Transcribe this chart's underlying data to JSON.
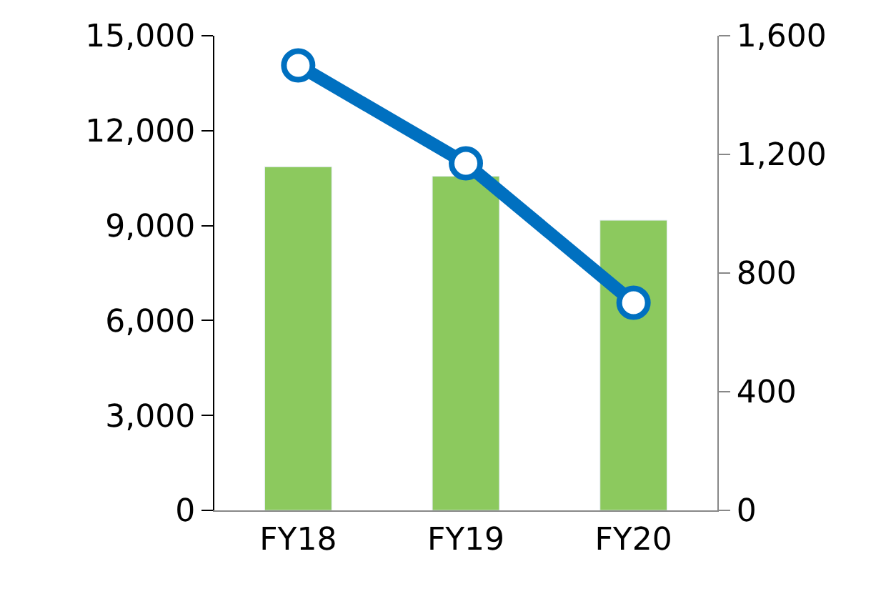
{
  "chart_data": {
    "type": "bar",
    "categories": [
      "FY18",
      "FY19",
      "FY20"
    ],
    "series": [
      {
        "color": "#8cc95e",
        "values": [
          10860,
          10560,
          9170
        ]
      },
      {
        "type": "line",
        "axis": "y2",
        "color": "#0070c0",
        "values": [
          1500,
          1170,
          700
        ],
        "marker": "circle"
      }
    ],
    "ylim": [
      0,
      15000
    ],
    "yticks": [
      {
        "value": 0,
        "label": "0"
      },
      {
        "value": 3000,
        "label": "3,000"
      },
      {
        "value": 6000,
        "label": "6,000"
      },
      {
        "value": 9000,
        "label": "9,000"
      },
      {
        "value": 12000,
        "label": "12,000"
      },
      {
        "value": 15000,
        "label": "15,000"
      }
    ],
    "y2lim": [
      0,
      1600
    ],
    "y2ticks": [
      {
        "value": 0,
        "label": "0"
      },
      {
        "value": 400,
        "label": "400"
      },
      {
        "value": 800,
        "label": "800"
      },
      {
        "value": 1200,
        "label": "1,200"
      },
      {
        "value": 1600,
        "label": "1,600"
      }
    ]
  }
}
